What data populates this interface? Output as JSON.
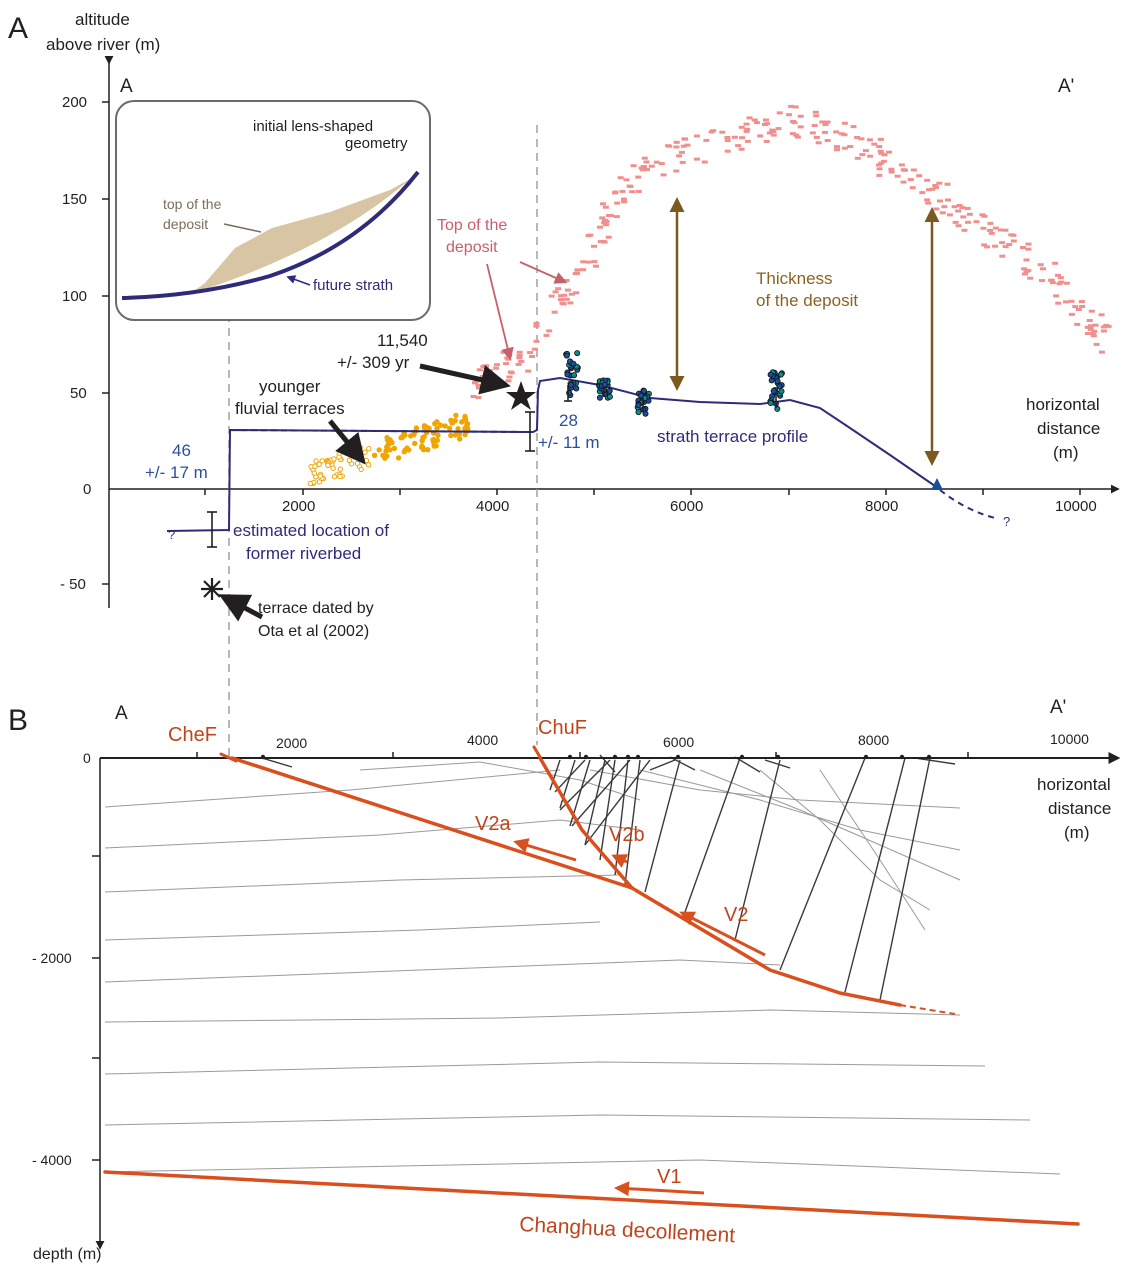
{
  "colors": {
    "axis": "#231f20",
    "strath": "#2e2b7a",
    "deposit_pink": "#f0908e",
    "young_terrace_orange": "#f0a500",
    "fault_red": "#d9501e",
    "thickness_brown": "#7a5a1e",
    "bedding_grey": "#9a9a9a",
    "inset_fill": "#d8c5a3"
  },
  "panel_a": {
    "panel_letter": "A",
    "y_axis_title_line1": "altitude",
    "y_axis_title_line2": "above river (m)",
    "y_ticks": [
      "200",
      "150",
      "100",
      "50",
      "0",
      "- 50"
    ],
    "x_ticks": [
      "2000",
      "4000",
      "6000",
      "8000",
      "10000"
    ],
    "x_axis_title_line1": "horizontal",
    "x_axis_title_line2": "distance",
    "x_axis_title_line3": "(m)",
    "section_start": "A",
    "section_end": "A'",
    "inset": {
      "title_line1": "initial lens-shaped",
      "title_line2": "geometry",
      "top_label_line1": "top of the",
      "top_label_line2": "deposit",
      "strath_label": "future strath"
    },
    "top_deposit_line1": "Top of the",
    "top_deposit_line2": "deposit",
    "thickness_line1": "Thickness",
    "thickness_line2": "of the deposit",
    "age_line1": "11,540",
    "age_line2": "+/- 309 yr",
    "young_terraces_line1": "younger",
    "young_terraces_line2": "fluvial terraces",
    "value_46": "46",
    "value_46_err": "+/- 17 m",
    "value_28": "28",
    "value_28_err": "+/- 11 m",
    "strath_profile": "strath terrace profile",
    "riverbed_line1": "estimated location of",
    "riverbed_line2": "former riverbed",
    "question_mark": "?",
    "dated_line1": "terrace dated by",
    "dated_line2": "Ota et al (2002)"
  },
  "panel_b": {
    "panel_letter": "B",
    "section_start": "A",
    "section_end": "A'",
    "y_ticks": [
      "0",
      "- 2000",
      "- 4000"
    ],
    "x_ticks": [
      "2000",
      "4000",
      "6000",
      "8000",
      "10000"
    ],
    "x_axis_title_line1": "horizontal",
    "x_axis_title_line2": "distance",
    "x_axis_title_line3": "(m)",
    "y_axis_title": "depth (m)",
    "fault_chef": "CheF",
    "fault_chuf": "ChuF",
    "label_v2a": "V2a",
    "label_v2b": "V2b",
    "label_v2": "V2",
    "label_v1": "V1",
    "decollement": "Changhua decollement"
  }
}
